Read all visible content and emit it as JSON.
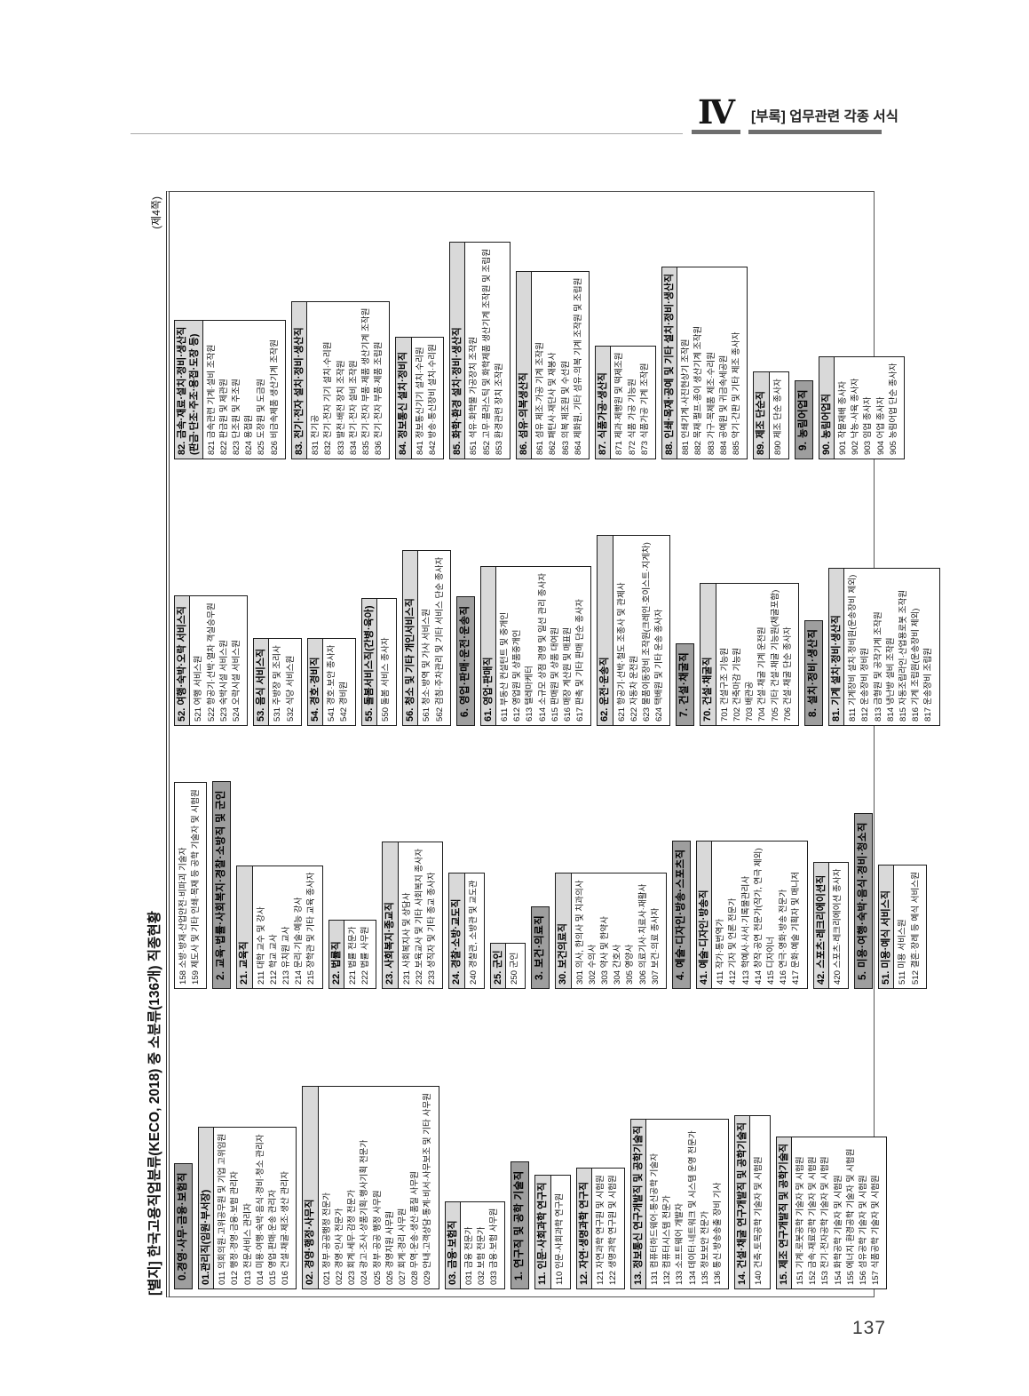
{
  "page_header": {
    "section_numeral": "Ⅳ",
    "section_title": "[부록] 업무관련 각종 서식"
  },
  "page_number": "137",
  "colors": {
    "l1_bar": "#9e9e9e",
    "l2_bar": "#d9d9d9",
    "border": "#1c1c1c"
  },
  "table": {
    "title": "[별지] 한국고용직업분류(KECO, 2018) 중 소분류(136개) 직종현황",
    "page_note": "(제4쪽)",
    "columns": [
      {
        "cells": [
          {
            "type": "major",
            "label": "0.경영·사무·금융·보험직"
          },
          {
            "type": "group",
            "label": "01.관리직(임원·부서장)",
            "entries": [
              "011 의회의원·고위공무원 및 기업 고위임원",
              "012 행정·경영·금융·보험 관리자",
              "013 전문서비스 관리자",
              "014 미용·여행·숙박·음식·경비·청소 관리자",
              "015 영업·판매·운송 관리자",
              "016 건설·채굴·제조·생산 관리자"
            ]
          },
          {
            "type": "group",
            "label": "02. 경영·행정·사무직",
            "entries": [
              "021 정부·공공행정 전문가",
              "022 경영·인사 전문가",
              "023 회계·세무·감정 전문가",
              "024 광고·조사·상품기획·행사기획 전문가",
              "025 정부·공공 행정 사무원",
              "026 경영지원 사무원",
              "027 회계·경리 사무원",
              "028 무역·운송·생산·품질 사무원",
              "029 안내·고객상담·통계·비서·사무보조 및 기타 사무원"
            ]
          },
          {
            "type": "group",
            "label": "03. 금융·보험직",
            "entries": [
              "031 금융 전문가",
              "032 보험 전문가",
              "033 금융·보험 사무원"
            ]
          },
          {
            "type": "major",
            "label": "1. 연구직 및 공학 기술직"
          },
          {
            "type": "group",
            "label": "11. 인문·사회과학 연구직",
            "entries": [
              "110 인문·사회과학 연구원"
            ]
          },
          {
            "type": "group",
            "label": "12. 자연·생명과학 연구직",
            "entries": [
              "121 자연과학 연구원 및 시험원",
              "122 생명과학 연구원 및 시험원"
            ]
          },
          {
            "type": "group",
            "label": "13. 정보통신 연구개발직 및 공학기술직",
            "entries": [
              "131 컴퓨터하드웨어·통신공학 기술자",
              "132 컴퓨터시스템 전문가",
              "133 소프트웨어 개발자",
              "134 데이터·네트워크 및 시스템 운영 전문가",
              "135 정보보안 전문가",
              "136 통신·방송송출 장비 기사"
            ]
          },
          {
            "type": "group",
            "label": "14. 건설·채굴 연구개발직 및 공학기술직",
            "entries": [
              "140 건축·토목공학 기술자 및 시험원"
            ]
          },
          {
            "type": "group",
            "label": "15. 제조 연구개발직 및 공학기술직",
            "entries": [
              "151 기계·로봇공학 기술자 및 시험원",
              "152 금속·재료공학 기술자 및 시험원",
              "153 전기·전자공학 기술자 및 시험원",
              "154 화학공학 기술자 및 시험원",
              "155 에너지·환경공학 기술자 및 시험원",
              "156 섬유공학 기술자 및 시험원",
              "157 식품공학 기술자 및 시험원"
            ]
          }
        ]
      },
      {
        "cells": [
          {
            "type": "entries",
            "entries": [
              "158 소방·방재·산업안전·비파괴 기술자",
              "159 제도사 및 기타 인쇄·목재 등 공학 기술자 및 시험원"
            ]
          },
          {
            "type": "major",
            "label": "2. 교육·법률·사회복지·경찰·소방직 및 군인"
          },
          {
            "type": "group",
            "label": "21. 교육직",
            "entries": [
              "211 대학 교수 및 강사",
              "212 학교 교사",
              "213 유치원 교사",
              "214 문리·기술·예능 강사",
              "215 장학관 및 기타 교육 종사자"
            ]
          },
          {
            "type": "group",
            "label": "22. 법률직",
            "entries": [
              "221 법률 전문가",
              "222 법률 사무원"
            ]
          },
          {
            "type": "group",
            "label": "23. 사회복지·종교직",
            "entries": [
              "231 사회복지사 및 상담사",
              "232 보육교사 및 기타 사회복지 종사자",
              "233 성직자 및 기타 종교 종사자"
            ]
          },
          {
            "type": "group",
            "label": "24. 경찰·소방·교도직",
            "entries": [
              "240 경찰관, 소방관 및 교도관"
            ]
          },
          {
            "type": "group",
            "label": "25. 군인",
            "entries": [
              "250 군인"
            ]
          },
          {
            "type": "major",
            "label": "3. 보건·의료직"
          },
          {
            "type": "group",
            "label": "30. 보건의료직",
            "entries": [
              "301 의사, 한의사 및 치과의사",
              "302 수의사",
              "303 약사 및 한약사",
              "304 간호사",
              "305 영양사",
              "306 의료기사·치료사·재활사",
              "307 보건·의료 종사자"
            ]
          },
          {
            "type": "major",
            "label": "4. 예술·디자인·방송·스포츠직"
          },
          {
            "type": "group",
            "label": "41. 예술·디자인·방송직",
            "entries": [
              "411 작가·통번역가",
              "412 기자 및 언론 전문가",
              "413 학예사·사서·기록물관리사",
              "414 창작·공연 전문가(작가, 연극 제외)",
              "415 디자이너",
              "416 연극·영화·방송 전문가",
              "417 문화·예술 기획자 및 매니저"
            ]
          },
          {
            "type": "group",
            "label": "42. 스포츠·레크리에이션직",
            "entries": [
              "420 스포츠·레크리에이션 종사자"
            ]
          },
          {
            "type": "major",
            "label": "5. 미용·여행·숙박·음식·경비·청소직"
          },
          {
            "type": "group",
            "label": "51. 미용·예식 서비스직",
            "entries": [
              "511 미용 서비스원",
              "512 결혼·장례 등 예식 서비스원"
            ]
          }
        ]
      },
      {
        "cells": [
          {
            "type": "group",
            "label": "52. 여행·숙박·오락 서비스직",
            "entries": [
              "521 여행 서비스원",
              "522 항공기·선박·열차 객실승무원",
              "523 숙박시설 서비스원",
              "524 오락시설 서비스원"
            ]
          },
          {
            "type": "group",
            "label": "53. 음식 서비스직",
            "entries": [
              "531 주방장 및 조리사",
              "532 식당 서비스원"
            ]
          },
          {
            "type": "group",
            "label": "54. 경호·경비직",
            "entries": [
              "541 경호·보안 종사자",
              "542 경비원"
            ]
          },
          {
            "type": "group",
            "label": "55. 돌봄서비스직(간병·육아)",
            "entries": [
              "550 돌봄 서비스 종사자"
            ]
          },
          {
            "type": "group",
            "label": "56. 청소 및 기타 개인서비스직",
            "entries": [
              "561 청소·방역 및 가사 서비스원",
              "562 검침·주차관리 및 기타 서비스 단순 종사자"
            ]
          },
          {
            "type": "major",
            "label": "6. 영업·판매·운전·운송직"
          },
          {
            "type": "group",
            "label": "61. 영업·판매직",
            "entries": [
              "611 부동산 컨설턴트 및 중개인",
              "612 영업원 및 상품중개인",
              "613 텔레마케터",
              "614 소규모 상점 경영 및 일선 관리 종사자",
              "615 판매원 및 상품 대여원",
              "616 매장 계산원 및 매표원",
              "617 판촉 및 기타 판매 단순 종사자"
            ]
          },
          {
            "type": "group",
            "label": "62. 운전·운송직",
            "entries": [
              "621 항공기·선박·철도 조종사 및 관제사",
              "622 자동차 운전원",
              "623 물품이동장비 조작원(크레인·호이스트·지게차)",
              "624 택배원 및 기타 운송 종사자"
            ]
          },
          {
            "type": "major",
            "label": "7. 건설·채굴직"
          },
          {
            "type": "group",
            "label": "70. 건설·채굴직",
            "entries": [
              "701 건설구조 기능원",
              "702 건축마감 기능원",
              "703 배관공",
              "704 건설·채굴 기계 운전원",
              "705 기타 건설·채굴 기능원(채굴포함)",
              "706 건설·채굴 단순 종사자"
            ]
          },
          {
            "type": "major",
            "label": "8. 설치·정비·생산직"
          },
          {
            "type": "group",
            "label": "81. 기계 설치·정비·생산직",
            "entries": [
              "811 기계장비 설치·정비원(운송장비 제외)",
              "812 운송장비 정비원",
              "813 금형원 및 공작기계 조작원",
              "814 냉난방 설비 조작원",
              "815 자동조립라인·산업용로봇 조작원",
              "816 기계 조립원(운송장비 제외)",
              "817 운송장비 조립원"
            ]
          }
        ]
      },
      {
        "cells": [
          {
            "type": "group",
            "label": "82. 금속·재료·설치·정비·생산직",
            "label2": "(판금·단조·주조·용접·도장 등)",
            "entries": [
              "821 금속관련 기계·설비 조작원",
              "822 판금원 및 제관원",
              "823 단조원 및 주조원",
              "824 용접원",
              "825 도장원 및 도금원",
              "826 비금속제품 생산기계 조작원"
            ]
          },
          {
            "type": "group",
            "label": "83. 전기·전자 설치·정비·생산직",
            "entries": [
              "831 전기공",
              "832 전기·전자 기기 설치·수리원",
              "833 발전·배전 장치 조작원",
              "834 전기·전자 설비 조작원",
              "835 전기·전자 부품·제품 생산기계 조작원",
              "836 전기·전자 부품·제품 조립원"
            ]
          },
          {
            "type": "group",
            "label": "84. 정보통신 설치·정비직",
            "entries": [
              "841 정보통신기기 설치·수리원",
              "842 방송·통신장비 설치·수리원"
            ]
          },
          {
            "type": "group",
            "label": "85. 화학·환경 설치·정비·생산직",
            "entries": [
              "851 석유·화학물 가공장치 조작원",
              "852 고무·플라스틱 및 화학제품 생산기계 조작원 및 조립원",
              "853 환경관련 장치 조작원"
            ]
          },
          {
            "type": "group",
            "label": "86. 섬유·의복생산직",
            "entries": [
              "861 섬유 제조·가공 기계 조작원",
              "862 패턴사·재단사 및 재봉사",
              "863 의복 제조원 및 수선원",
              "864 제화원, 기타 섬유·의복 기계 조작원 및 조립원"
            ]
          },
          {
            "type": "group",
            "label": "87. 식품가공·생산직",
            "entries": [
              "871 제과·제빵원 및 떡제조원",
              "872 식품 가공 기능원",
              "873 식품가공 기계 조작원"
            ]
          },
          {
            "type": "group",
            "label": "88. 인쇄·목재·공예 및 기타 설치·정비·생산직",
            "entries": [
              "881 인쇄기계·사진현상기 조작원",
              "882 목재·펄프·종이 생산기계 조작원",
              "883 가구·목제품 제조·수리원",
              "884 공예원 및 귀금속세공원",
              "885 악기·간판 및 기타 제조 종사자"
            ]
          },
          {
            "type": "group",
            "label": "89. 제조 단순직",
            "entries": [
              "890 제조 단순 종사자"
            ]
          },
          {
            "type": "major",
            "label": "9. 농림어업직"
          },
          {
            "type": "group",
            "label": "90. 농림어업직",
            "entries": [
              "901 작물재배 종사자",
              "902 낙농·사육 종사자",
              "903 임업 종사자",
              "904 어업 종사자",
              "905 농림어업 단순 종사자"
            ]
          }
        ]
      }
    ]
  }
}
